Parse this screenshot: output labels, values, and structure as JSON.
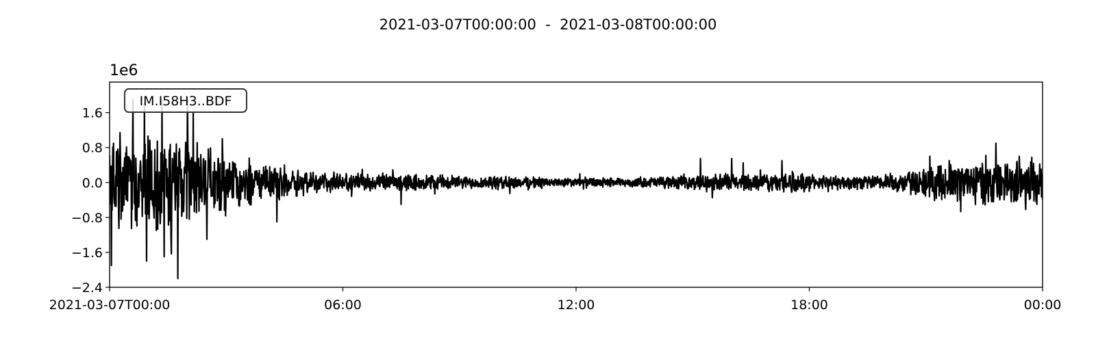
{
  "chart_data": {
    "type": "line",
    "title": "2021-03-07T00:00:00  -  2021-03-08T00:00:00",
    "trace_label": "IM.I58H3..BDF",
    "y_offset_text": "1e6",
    "y_multiplier": 1000000,
    "xlabel": "",
    "ylabel": "",
    "x_range_hours": [
      0,
      24
    ],
    "x_ticks": [
      {
        "hour": 0,
        "label": "2021-03-07T00:00"
      },
      {
        "hour": 6,
        "label": "06:00"
      },
      {
        "hour": 12,
        "label": "12:00"
      },
      {
        "hour": 18,
        "label": "18:00"
      },
      {
        "hour": 24,
        "label": "00:00"
      }
    ],
    "ylim": [
      -2.4,
      2.3
    ],
    "y_ticks": [
      {
        "value": 1.6,
        "label": "1.6"
      },
      {
        "value": 0.8,
        "label": "0.8"
      },
      {
        "value": 0.0,
        "label": "0.0"
      },
      {
        "value": -0.8,
        "label": "−0.8"
      },
      {
        "value": -1.6,
        "label": "−1.6"
      },
      {
        "value": -2.4,
        "label": "−2.4"
      }
    ],
    "grid": false,
    "line_color": "#000000",
    "envelope_hours": [
      0,
      0.5,
      1,
      1.5,
      2,
      2.5,
      3,
      3.5,
      4,
      4.5,
      5,
      5.5,
      6,
      6.5,
      7,
      7.5,
      8,
      8.5,
      9,
      9.5,
      10,
      10.5,
      11,
      11.5,
      12,
      12.5,
      13,
      13.5,
      14,
      14.5,
      15,
      15.5,
      16,
      16.5,
      17,
      17.5,
      18,
      18.5,
      19,
      19.5,
      20,
      20.5,
      21,
      21.5,
      22,
      22.5,
      23,
      23.5,
      24
    ],
    "envelope_amplitude": [
      0.8,
      1.0,
      1.1,
      1.1,
      1.0,
      0.8,
      0.6,
      0.5,
      0.4,
      0.35,
      0.3,
      0.25,
      0.2,
      0.2,
      0.18,
      0.18,
      0.17,
      0.17,
      0.15,
      0.15,
      0.15,
      0.13,
      0.12,
      0.1,
      0.1,
      0.1,
      0.1,
      0.1,
      0.12,
      0.15,
      0.15,
      0.17,
      0.2,
      0.2,
      0.2,
      0.25,
      0.18,
      0.15,
      0.15,
      0.17,
      0.2,
      0.25,
      0.35,
      0.4,
      0.45,
      0.5,
      0.5,
      0.55,
      0.55
    ],
    "spikes": [
      {
        "hour": 0.05,
        "value": -1.9
      },
      {
        "hour": 0.1,
        "value": 0.9
      },
      {
        "hour": 0.6,
        "value": 1.9
      },
      {
        "hour": 0.9,
        "value": 1.8
      },
      {
        "hour": 0.95,
        "value": -1.8
      },
      {
        "hour": 1.35,
        "value": 1.9
      },
      {
        "hour": 1.4,
        "value": -1.7
      },
      {
        "hour": 1.75,
        "value": -2.2
      },
      {
        "hour": 2.0,
        "value": 1.9
      },
      {
        "hour": 2.15,
        "value": 1.6
      },
      {
        "hour": 2.5,
        "value": -1.3
      },
      {
        "hour": 2.9,
        "value": 1.0
      },
      {
        "hour": 4.3,
        "value": -0.9
      },
      {
        "hour": 4.5,
        "value": 0.4
      },
      {
        "hour": 6.5,
        "value": 0.3
      },
      {
        "hour": 7.5,
        "value": -0.5
      },
      {
        "hour": 10.3,
        "value": -0.25
      },
      {
        "hour": 12.1,
        "value": 0.2
      },
      {
        "hour": 15.2,
        "value": 0.55
      },
      {
        "hour": 15.5,
        "value": -0.35
      },
      {
        "hour": 16.0,
        "value": 0.55
      },
      {
        "hour": 16.3,
        "value": 0.45
      },
      {
        "hour": 17.3,
        "value": 0.5
      },
      {
        "hour": 21.1,
        "value": 0.6
      },
      {
        "hour": 21.6,
        "value": 0.5
      },
      {
        "hour": 22.8,
        "value": 0.9
      },
      {
        "hour": 23.4,
        "value": 0.6
      },
      {
        "hour": 23.85,
        "value": -0.5
      }
    ]
  }
}
